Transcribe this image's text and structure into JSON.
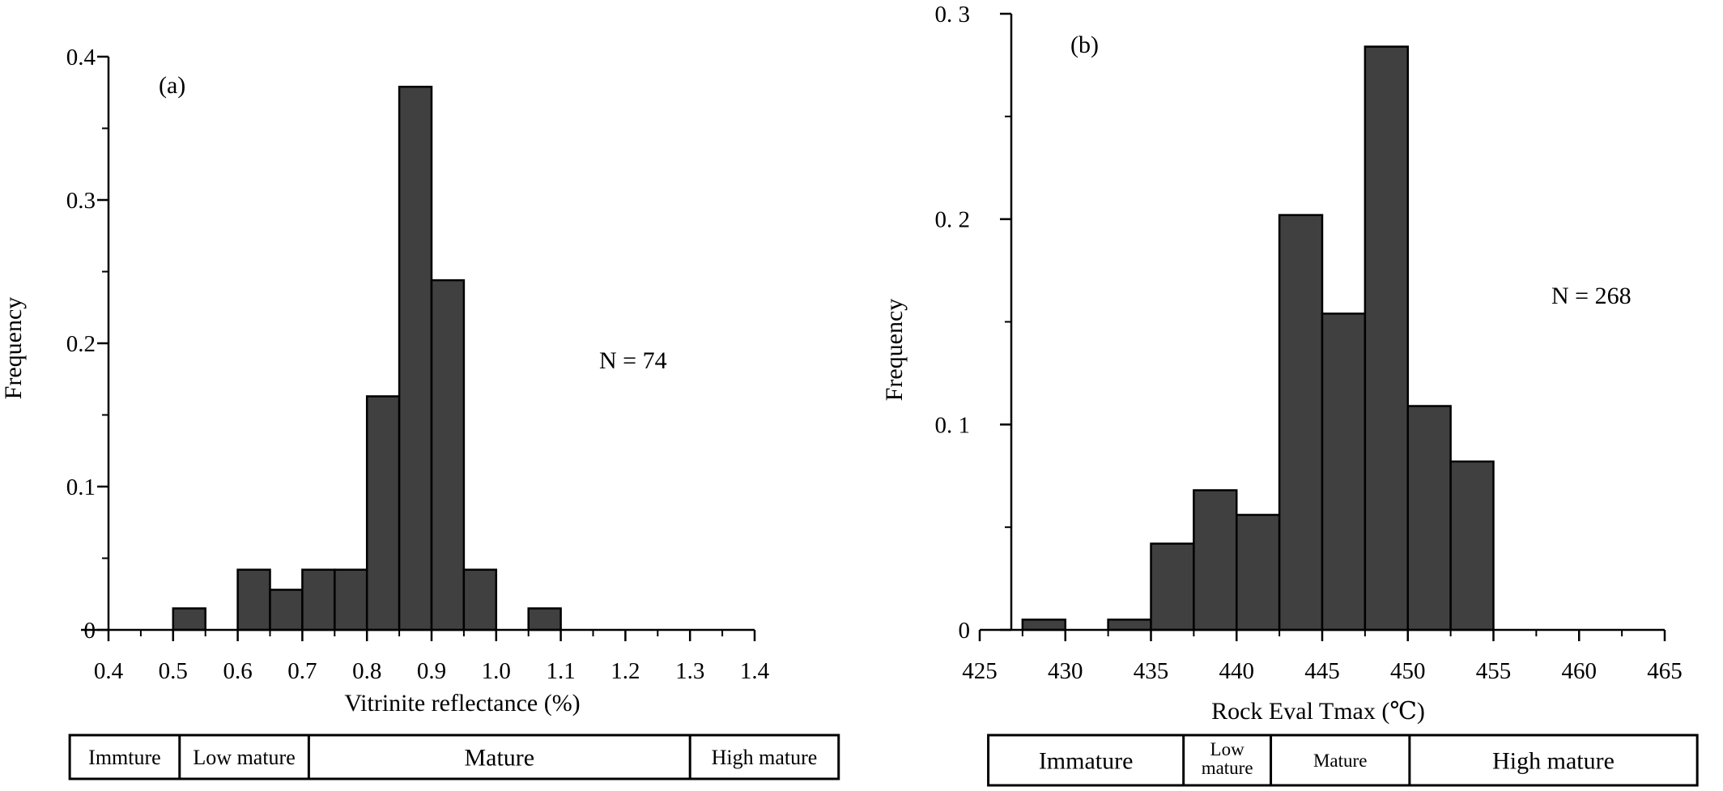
{
  "chart_data": [
    {
      "type": "bar",
      "panel_label": "(a)",
      "xlabel": "Vitrinite reflectance (%)",
      "ylabel": "Frequency",
      "xlim": [
        0.4,
        1.4
      ],
      "ylim": [
        0,
        0.4
      ],
      "x_ticks": [
        0.4,
        0.5,
        0.6,
        0.7,
        0.8,
        0.9,
        1.0,
        1.1,
        1.2,
        1.3,
        1.4
      ],
      "x_tick_labels": [
        "0.4",
        "0.5",
        "0.6",
        "0.7",
        "0.8",
        "0.9",
        "1.0",
        "1.1",
        "1.2",
        "1.3",
        "1.4"
      ],
      "y_ticks": [
        0,
        0.1,
        0.2,
        0.3,
        0.4
      ],
      "y_tick_labels": [
        "0",
        "0.1",
        "0.2",
        "0.3",
        "0.4"
      ],
      "bars": [
        {
          "x0": 0.5,
          "x1": 0.55,
          "value": 0.015
        },
        {
          "x0": 0.6,
          "x1": 0.65,
          "value": 0.042
        },
        {
          "x0": 0.65,
          "x1": 0.7,
          "value": 0.028
        },
        {
          "x0": 0.7,
          "x1": 0.75,
          "value": 0.042
        },
        {
          "x0": 0.75,
          "x1": 0.8,
          "value": 0.042
        },
        {
          "x0": 0.8,
          "x1": 0.85,
          "value": 0.163
        },
        {
          "x0": 0.85,
          "x1": 0.9,
          "value": 0.379
        },
        {
          "x0": 0.9,
          "x1": 0.95,
          "value": 0.244
        },
        {
          "x0": 0.95,
          "x1": 1.0,
          "value": 0.042
        },
        {
          "x0": 1.05,
          "x1": 1.1,
          "value": 0.015
        }
      ],
      "annotation": "N = 74",
      "maturity_zones": [
        {
          "label": "Immture",
          "from": 0.34,
          "to": 0.51
        },
        {
          "label": "Low mature",
          "from": 0.51,
          "to": 0.71
        },
        {
          "label": "Mature",
          "from": 0.71,
          "to": 1.3
        },
        {
          "label": "High mature",
          "from": 1.3,
          "to": 1.53
        }
      ],
      "bar_color": "#404040",
      "grid": false
    },
    {
      "type": "bar",
      "panel_label": "(b)",
      "xlabel": "Rock Eval Tmax (℃)",
      "ylabel": "Frequency",
      "xlim": [
        425,
        465
      ],
      "ylim": [
        0,
        0.3
      ],
      "x_ticks": [
        425,
        430,
        435,
        440,
        445,
        450,
        455,
        460,
        465
      ],
      "x_tick_labels": [
        "425",
        "430",
        "435",
        "440",
        "445",
        "450",
        "455",
        "460",
        "465"
      ],
      "y_ticks": [
        0,
        0.1,
        0.2,
        0.3
      ],
      "y_tick_labels": [
        "0",
        "0. 1",
        "0. 2",
        "0. 3"
      ],
      "bars": [
        {
          "x0": 427.5,
          "x1": 430.0,
          "value": 0.005
        },
        {
          "x0": 432.5,
          "x1": 435.0,
          "value": 0.005
        },
        {
          "x0": 435.0,
          "x1": 437.5,
          "value": 0.042
        },
        {
          "x0": 437.5,
          "x1": 440.0,
          "value": 0.068
        },
        {
          "x0": 440.0,
          "x1": 442.5,
          "value": 0.056
        },
        {
          "x0": 442.5,
          "x1": 445.0,
          "value": 0.202
        },
        {
          "x0": 445.0,
          "x1": 447.5,
          "value": 0.154
        },
        {
          "x0": 447.5,
          "x1": 450.0,
          "value": 0.284
        },
        {
          "x0": 450.0,
          "x1": 452.5,
          "value": 0.109
        },
        {
          "x0": 452.5,
          "x1": 455.0,
          "value": 0.082
        }
      ],
      "annotation": "N = 268",
      "maturity_zones": [
        {
          "label": "Immature",
          "from": 425.5,
          "to": 436.9
        },
        {
          "label": [
            "Low",
            "mature"
          ],
          "from": 436.9,
          "to": 442.0
        },
        {
          "label": "Mature",
          "from": 442.0,
          "to": 450.1
        },
        {
          "label": "High mature",
          "from": 450.1,
          "to": 466.9
        }
      ],
      "bar_color": "#404040",
      "grid": false
    }
  ]
}
